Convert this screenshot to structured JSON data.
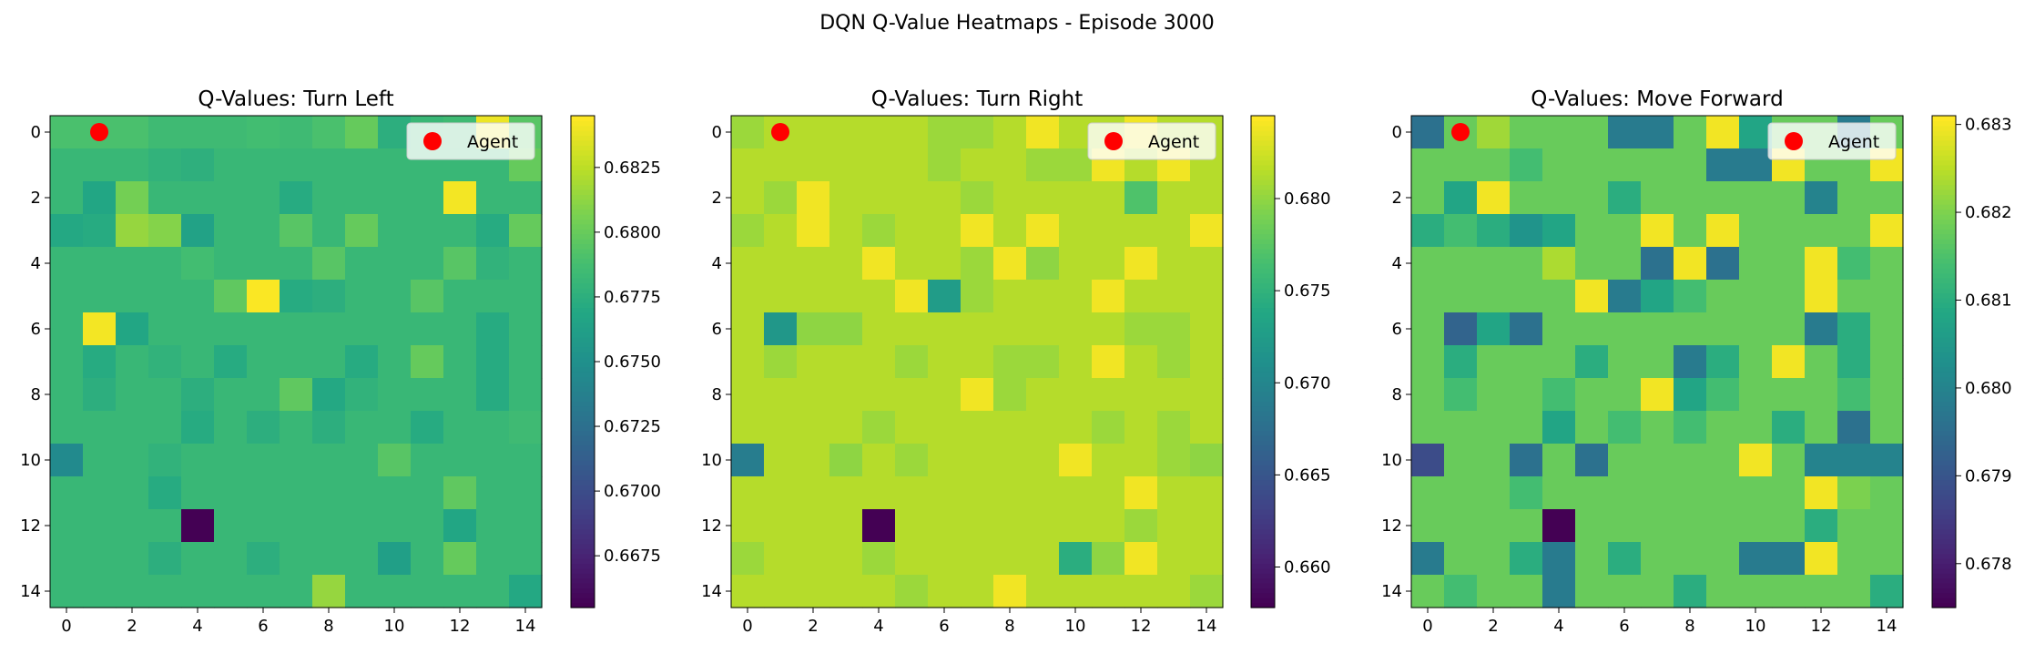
{
  "figure": {
    "suptitle": "DQN Q-Value Heatmaps - Episode 3000"
  },
  "chart_data": [
    {
      "type": "heatmap",
      "title": "Q-Values: Turn Left",
      "colormap": "viridis",
      "grid_size": [
        15,
        15
      ],
      "x_ticks": [
        "0",
        "2",
        "4",
        "6",
        "8",
        "10",
        "12",
        "14"
      ],
      "y_ticks": [
        "0",
        "2",
        "4",
        "6",
        "8",
        "10",
        "12",
        "14"
      ],
      "vmin": 0.6655,
      "vmax": 0.6845,
      "colorbar_ticks": [
        "0.6675",
        "0.6700",
        "0.6725",
        "0.6750",
        "0.6775",
        "0.6800",
        "0.6825"
      ],
      "colorbar_tick_values": [
        0.6675,
        0.67,
        0.6725,
        0.675,
        0.6775,
        0.68,
        0.6825
      ],
      "legend": {
        "label": "Agent",
        "position": "upper right",
        "marker_color": "#ff0000"
      },
      "agent": {
        "row": 0,
        "col": 1
      },
      "values": [
        [
          0.679,
          0.679,
          0.679,
          0.6785,
          0.6785,
          0.6785,
          0.6787,
          0.6785,
          0.679,
          0.68,
          0.6775,
          0.6782,
          0.6785,
          0.684,
          0.6795
        ],
        [
          0.6782,
          0.6782,
          0.6782,
          0.6778,
          0.6776,
          0.6782,
          0.6782,
          0.6782,
          0.6782,
          0.6782,
          0.6782,
          0.6782,
          0.6782,
          0.6782,
          0.68
        ],
        [
          0.6782,
          0.6768,
          0.6805,
          0.6782,
          0.6782,
          0.6782,
          0.6782,
          0.6772,
          0.6782,
          0.6782,
          0.6782,
          0.6782,
          0.6842,
          0.6782,
          0.6782
        ],
        [
          0.677,
          0.6772,
          0.6815,
          0.681,
          0.6765,
          0.6782,
          0.6782,
          0.6795,
          0.6782,
          0.68,
          0.6782,
          0.6782,
          0.6782,
          0.6772,
          0.68
        ],
        [
          0.6782,
          0.6782,
          0.6782,
          0.6782,
          0.6787,
          0.6782,
          0.6782,
          0.6782,
          0.6795,
          0.6782,
          0.6782,
          0.6782,
          0.6795,
          0.6778,
          0.6782
        ],
        [
          0.6782,
          0.6782,
          0.6782,
          0.6782,
          0.6782,
          0.6798,
          0.6844,
          0.6772,
          0.6775,
          0.6782,
          0.6782,
          0.6795,
          0.6782,
          0.6782,
          0.6782
        ],
        [
          0.6782,
          0.6842,
          0.6768,
          0.6782,
          0.6782,
          0.6782,
          0.6782,
          0.6782,
          0.6782,
          0.6782,
          0.6782,
          0.6782,
          0.6782,
          0.6772,
          0.6782
        ],
        [
          0.6782,
          0.6772,
          0.6782,
          0.6778,
          0.6782,
          0.6772,
          0.6782,
          0.6782,
          0.6782,
          0.6772,
          0.6782,
          0.68,
          0.6782,
          0.6772,
          0.6782
        ],
        [
          0.6782,
          0.6775,
          0.6782,
          0.6782,
          0.6775,
          0.6782,
          0.6782,
          0.6798,
          0.677,
          0.6778,
          0.6782,
          0.6782,
          0.6782,
          0.6772,
          0.6782
        ],
        [
          0.6782,
          0.6782,
          0.6782,
          0.6782,
          0.6772,
          0.6782,
          0.6775,
          0.6782,
          0.6775,
          0.6782,
          0.6782,
          0.6772,
          0.6782,
          0.6782,
          0.6785
        ],
        [
          0.6745,
          0.6782,
          0.6782,
          0.6778,
          0.6782,
          0.6782,
          0.6782,
          0.6782,
          0.6782,
          0.6782,
          0.6795,
          0.6782,
          0.6782,
          0.6782,
          0.6782
        ],
        [
          0.6782,
          0.6782,
          0.6782,
          0.6772,
          0.6782,
          0.6782,
          0.6782,
          0.6782,
          0.6782,
          0.6782,
          0.6782,
          0.6782,
          0.6798,
          0.6782,
          0.6782
        ],
        [
          0.6782,
          0.6782,
          0.6782,
          0.6782,
          0.6655,
          0.6782,
          0.6782,
          0.6782,
          0.6782,
          0.6782,
          0.6782,
          0.6782,
          0.6768,
          0.6782,
          0.6782
        ],
        [
          0.6782,
          0.6782,
          0.6782,
          0.6775,
          0.6782,
          0.6782,
          0.6775,
          0.6782,
          0.6782,
          0.6782,
          0.6762,
          0.6782,
          0.68,
          0.6782,
          0.6782
        ],
        [
          0.6782,
          0.6782,
          0.6782,
          0.6782,
          0.6782,
          0.6782,
          0.6782,
          0.6782,
          0.6815,
          0.6782,
          0.6782,
          0.6782,
          0.6782,
          0.6782,
          0.677
        ]
      ]
    },
    {
      "type": "heatmap",
      "title": "Q-Values: Turn Right",
      "colormap": "viridis",
      "grid_size": [
        15,
        15
      ],
      "x_ticks": [
        "0",
        "2",
        "4",
        "6",
        "8",
        "10",
        "12",
        "14"
      ],
      "y_ticks": [
        "0",
        "2",
        "4",
        "6",
        "8",
        "10",
        "12",
        "14"
      ],
      "vmin": 0.6578,
      "vmax": 0.6845,
      "colorbar_ticks": [
        "0.660",
        "0.665",
        "0.670",
        "0.675",
        "0.680"
      ],
      "colorbar_tick_values": [
        0.66,
        0.665,
        0.67,
        0.675,
        0.68
      ],
      "legend": {
        "label": "Agent",
        "position": "upper right",
        "marker_color": "#ff0000"
      },
      "agent": {
        "row": 0,
        "col": 1
      },
      "values": [
        [
          0.6805,
          0.6815,
          0.6815,
          0.6815,
          0.6815,
          0.6815,
          0.6805,
          0.6805,
          0.6815,
          0.684,
          0.6815,
          0.6815,
          0.684,
          0.6815,
          0.6815
        ],
        [
          0.6815,
          0.6815,
          0.6815,
          0.6815,
          0.6815,
          0.6815,
          0.6805,
          0.6815,
          0.6815,
          0.6805,
          0.6805,
          0.684,
          0.6815,
          0.684,
          0.6815
        ],
        [
          0.6815,
          0.6805,
          0.684,
          0.6815,
          0.6815,
          0.6815,
          0.6815,
          0.6805,
          0.6815,
          0.6815,
          0.6815,
          0.6815,
          0.677,
          0.6815,
          0.6815
        ],
        [
          0.6805,
          0.6815,
          0.684,
          0.6815,
          0.6805,
          0.6815,
          0.6815,
          0.684,
          0.6815,
          0.684,
          0.6815,
          0.6815,
          0.6815,
          0.6815,
          0.684
        ],
        [
          0.6815,
          0.6815,
          0.6815,
          0.6815,
          0.684,
          0.6815,
          0.6815,
          0.6805,
          0.684,
          0.68,
          0.6815,
          0.6815,
          0.684,
          0.6815,
          0.6815
        ],
        [
          0.6815,
          0.6815,
          0.6815,
          0.6815,
          0.6815,
          0.684,
          0.6725,
          0.6805,
          0.6815,
          0.6815,
          0.6815,
          0.684,
          0.6815,
          0.6815,
          0.6815
        ],
        [
          0.6815,
          0.672,
          0.68,
          0.68,
          0.6815,
          0.6815,
          0.6815,
          0.6815,
          0.6815,
          0.6815,
          0.6815,
          0.6815,
          0.6805,
          0.6805,
          0.6815
        ],
        [
          0.6815,
          0.6805,
          0.6815,
          0.6815,
          0.6815,
          0.6805,
          0.6815,
          0.6815,
          0.6805,
          0.6805,
          0.6815,
          0.684,
          0.6815,
          0.6805,
          0.6815
        ],
        [
          0.6815,
          0.6815,
          0.6815,
          0.6815,
          0.6815,
          0.6815,
          0.6815,
          0.684,
          0.6805,
          0.6815,
          0.6815,
          0.6815,
          0.6815,
          0.6815,
          0.6815
        ],
        [
          0.6815,
          0.6815,
          0.6815,
          0.6815,
          0.6805,
          0.6815,
          0.6815,
          0.6815,
          0.6815,
          0.6815,
          0.6815,
          0.6805,
          0.6815,
          0.6805,
          0.6815
        ],
        [
          0.669,
          0.6815,
          0.6815,
          0.68,
          0.6815,
          0.6805,
          0.6815,
          0.6815,
          0.6815,
          0.6815,
          0.684,
          0.6815,
          0.6815,
          0.6805,
          0.68
        ],
        [
          0.6815,
          0.6815,
          0.6815,
          0.6815,
          0.6815,
          0.6815,
          0.6815,
          0.6815,
          0.6815,
          0.6815,
          0.6815,
          0.6815,
          0.684,
          0.6815,
          0.6815
        ],
        [
          0.6815,
          0.6815,
          0.6815,
          0.6815,
          0.6578,
          0.6815,
          0.6815,
          0.6815,
          0.6815,
          0.6815,
          0.6815,
          0.6815,
          0.6805,
          0.6815,
          0.6815
        ],
        [
          0.6805,
          0.6815,
          0.6815,
          0.6815,
          0.6805,
          0.6815,
          0.6815,
          0.6815,
          0.6815,
          0.6815,
          0.6745,
          0.68,
          0.684,
          0.6815,
          0.6815
        ],
        [
          0.6815,
          0.6815,
          0.6815,
          0.6815,
          0.6815,
          0.6805,
          0.6815,
          0.6815,
          0.684,
          0.6815,
          0.6815,
          0.6815,
          0.6815,
          0.6815,
          0.6805
        ]
      ]
    },
    {
      "type": "heatmap",
      "title": "Q-Values: Move Forward",
      "colormap": "viridis",
      "grid_size": [
        15,
        15
      ],
      "x_ticks": [
        "0",
        "2",
        "4",
        "6",
        "8",
        "10",
        "12",
        "14"
      ],
      "y_ticks": [
        "0",
        "2",
        "4",
        "6",
        "8",
        "10",
        "12",
        "14"
      ],
      "vmin": 0.6775,
      "vmax": 0.6831,
      "colorbar_ticks": [
        "0.678",
        "0.679",
        "0.680",
        "0.681",
        "0.682",
        "0.683"
      ],
      "colorbar_tick_values": [
        0.678,
        0.679,
        0.68,
        0.681,
        0.682,
        0.683
      ],
      "legend": {
        "label": "Agent",
        "position": "upper right",
        "marker_color": "#ff0000"
      },
      "agent": {
        "row": 0,
        "col": 1
      },
      "values": [
        [
          0.6796,
          0.6818,
          0.6823,
          0.6818,
          0.6818,
          0.6818,
          0.6798,
          0.6798,
          0.6818,
          0.683,
          0.6808,
          0.6818,
          0.6818,
          0.6798,
          0.6818
        ],
        [
          0.6818,
          0.6818,
          0.6818,
          0.6814,
          0.6818,
          0.6818,
          0.6818,
          0.6818,
          0.6818,
          0.6798,
          0.6798,
          0.683,
          0.6818,
          0.6818,
          0.683
        ],
        [
          0.6818,
          0.6808,
          0.683,
          0.6818,
          0.6818,
          0.6818,
          0.681,
          0.6818,
          0.6818,
          0.6818,
          0.6818,
          0.6818,
          0.68,
          0.6818,
          0.6818
        ],
        [
          0.681,
          0.6814,
          0.681,
          0.6804,
          0.6808,
          0.6818,
          0.6818,
          0.683,
          0.6818,
          0.683,
          0.6818,
          0.6818,
          0.6818,
          0.6818,
          0.683
        ],
        [
          0.6818,
          0.6818,
          0.6818,
          0.6818,
          0.6824,
          0.6818,
          0.6818,
          0.6796,
          0.683,
          0.6796,
          0.6818,
          0.6818,
          0.683,
          0.6814,
          0.6818
        ],
        [
          0.6818,
          0.6818,
          0.6818,
          0.6818,
          0.6818,
          0.683,
          0.6798,
          0.6808,
          0.6814,
          0.6818,
          0.6818,
          0.6818,
          0.683,
          0.6818,
          0.6818
        ],
        [
          0.6818,
          0.6793,
          0.6808,
          0.6796,
          0.6818,
          0.6818,
          0.6818,
          0.6818,
          0.6818,
          0.6818,
          0.6818,
          0.6818,
          0.6798,
          0.681,
          0.6818
        ],
        [
          0.6818,
          0.681,
          0.6818,
          0.6818,
          0.6818,
          0.681,
          0.6818,
          0.6818,
          0.6798,
          0.681,
          0.6818,
          0.683,
          0.6818,
          0.681,
          0.6818
        ],
        [
          0.6818,
          0.6814,
          0.6818,
          0.6818,
          0.6814,
          0.6818,
          0.6818,
          0.683,
          0.6808,
          0.6814,
          0.6818,
          0.6818,
          0.6818,
          0.6814,
          0.6818
        ],
        [
          0.6818,
          0.6818,
          0.6818,
          0.6818,
          0.6808,
          0.6818,
          0.6814,
          0.6818,
          0.6814,
          0.6818,
          0.6818,
          0.681,
          0.6818,
          0.6796,
          0.6818
        ],
        [
          0.6788,
          0.6818,
          0.6818,
          0.6796,
          0.6818,
          0.6796,
          0.6818,
          0.6818,
          0.6818,
          0.6818,
          0.683,
          0.6818,
          0.68,
          0.68,
          0.68
        ],
        [
          0.6818,
          0.6818,
          0.6818,
          0.6814,
          0.6818,
          0.6818,
          0.6818,
          0.6818,
          0.6818,
          0.6818,
          0.6818,
          0.6818,
          0.683,
          0.682,
          0.6818
        ],
        [
          0.6818,
          0.6818,
          0.6818,
          0.6818,
          0.6775,
          0.6818,
          0.6818,
          0.6818,
          0.6818,
          0.6818,
          0.6818,
          0.6818,
          0.681,
          0.6818,
          0.6818
        ],
        [
          0.6798,
          0.6818,
          0.6818,
          0.681,
          0.6798,
          0.6818,
          0.681,
          0.6818,
          0.6818,
          0.6818,
          0.6798,
          0.6798,
          0.683,
          0.6818,
          0.6818
        ],
        [
          0.6818,
          0.6814,
          0.6818,
          0.6818,
          0.6798,
          0.6818,
          0.6818,
          0.6818,
          0.681,
          0.6818,
          0.6818,
          0.6818,
          0.6818,
          0.6818,
          0.681
        ]
      ]
    }
  ]
}
